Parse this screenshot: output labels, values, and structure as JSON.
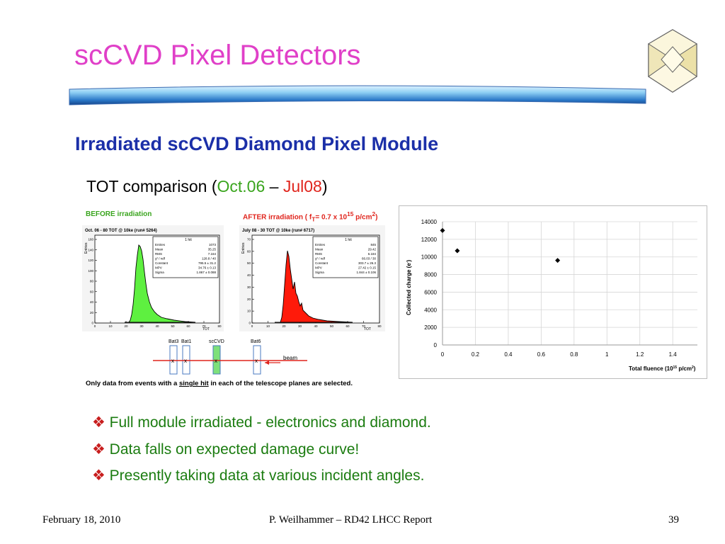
{
  "slide": {
    "title": "scCVD Pixel Detectors",
    "subtitle": "Irradiated scCVD Diamond Pixel Module"
  },
  "tot_figure": {
    "head_prefix": "TOT comparison (",
    "head_green": "Oct.06",
    "head_sep": " – ",
    "head_red": "Jul08",
    "head_suffix": ")",
    "before_label": "BEFORE irradiation",
    "after_label": "AFTER irradiation ( f",
    "after_label_sub": "T",
    "after_label_rest": "= 0.7 x 10",
    "after_label_sup": "15",
    "after_label_end": " p/cm",
    "after_label_sup2": "2",
    "after_label_close": ")",
    "left_hist_title": "Oct. 06 - 80 TOT @ 10ke (run# 5264)",
    "right_hist_title": "July 08 - 30 TOT @ 10ke (run# 6717)",
    "left_stats": [
      [
        "Entries",
        "1073"
      ],
      [
        "Mean",
        "35.25"
      ],
      [
        "RMS",
        "7.164"
      ],
      [
        "χ² / ndf",
        "128.8 / 40"
      ],
      [
        "Constant",
        "795.5 ± 31.2"
      ],
      [
        "MPV",
        "34.76 ± 0.13"
      ],
      [
        "Sigma",
        "1.867 ± 0.088"
      ]
    ],
    "right_stats": [
      [
        "Entries",
        "845"
      ],
      [
        "Mean",
        "29.42"
      ],
      [
        "RMS",
        "6.184"
      ],
      [
        "χ² / ndf",
        "66.03 / 30"
      ],
      [
        "Constant",
        "303.7 ± 26.3"
      ],
      [
        "MPV",
        "27.42 ± 0.15"
      ],
      [
        "Sigma",
        "1.844 ± 0.106"
      ]
    ],
    "left_stats_head": "1 hit",
    "right_stats_head": "1 hit",
    "y_axis_label": "Entries",
    "x_axis_label": "TOT",
    "left_x_ticks": [
      "0",
      "10",
      "20",
      "30",
      "40",
      "50",
      "60",
      "70",
      "80"
    ],
    "right_x_ticks": [
      "0",
      "10",
      "20",
      "30",
      "40",
      "50",
      "60",
      "70",
      "80"
    ],
    "left_y_ticks": [
      "0",
      "20",
      "40",
      "60",
      "80",
      "100",
      "120",
      "140",
      "160"
    ],
    "right_y_ticks": [
      "0",
      "10",
      "20",
      "30",
      "40",
      "50",
      "60",
      "70"
    ],
    "telescope_labels": [
      "Bat3",
      "Bat1",
      "scCVD",
      "Bat6"
    ],
    "beam_label": "beam",
    "note_pre": "Only data from events with a ",
    "note_underlined": "single hit",
    "note_post": " in each of the telescope planes are selected."
  },
  "chart_data": {
    "type": "scatter",
    "x": [
      0,
      0.09,
      0.7
    ],
    "y": [
      13000,
      10700,
      9600
    ],
    "xlim": [
      0,
      1.55
    ],
    "ylim": [
      0,
      14000
    ],
    "xlabel": "Total fluence (10",
    "xlabel_sup": "15",
    "xlabel_end": " p/cm",
    "xlabel_sup2": "2",
    "xlabel_close": ")",
    "ylabel": "Collected charge (e",
    "ylabel_sup": "-",
    "ylabel_close": ")",
    "x_ticks": [
      "0",
      "0.2",
      "0.4",
      "0.6",
      "0.8",
      "1",
      "1.2",
      "1.4"
    ],
    "y_ticks": [
      "0",
      "2000",
      "4000",
      "6000",
      "8000",
      "10000",
      "12000",
      "14000"
    ],
    "grid": true
  },
  "bullets": [
    " Full module irradiated - electronics and diamond.",
    "Data falls on expected damage curve!",
    "Presently taking data at various incident angles."
  ],
  "bullet_glyph": "❖",
  "footer": {
    "date": "February 18, 2010",
    "author": "P. Weilhammer – RD42 LHCC Report",
    "page": "39"
  },
  "colors": {
    "title": "#e040c8",
    "subtitle": "#1b2fa8",
    "bullet_text": "#1b7c10",
    "bullet_mark": "#c81e1e",
    "hist_before": "#5ef040",
    "hist_after": "#ff1a0a"
  },
  "icons": {
    "logo": "diamond-crystal-logo",
    "divider": "blue-gradient-bar"
  }
}
